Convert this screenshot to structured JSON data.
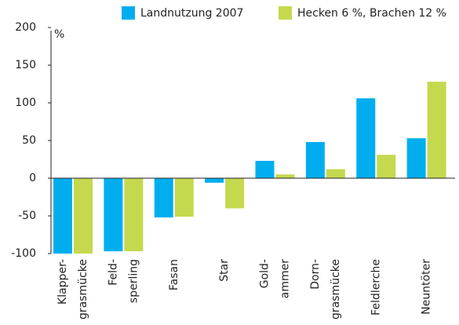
{
  "chart_data": {
    "type": "bar",
    "y_unit": "%",
    "categories": [
      [
        "Klapper-",
        "grasmücke"
      ],
      [
        "Feld-",
        "sperling"
      ],
      [
        "Fasan"
      ],
      [
        "Star"
      ],
      [
        "Gold-",
        "ammer"
      ],
      [
        "Dorn-",
        "grasmücke"
      ],
      [
        "Feldlerche"
      ],
      [
        "Neuntöter"
      ]
    ],
    "series": [
      {
        "name": "Landnutzung 2007",
        "color": "#00aeef",
        "values": [
          -100,
          -97,
          -52,
          -6,
          23,
          48,
          106,
          53
        ]
      },
      {
        "name": "Hecken 6 %, Brachen 12 %",
        "color": "#c6d84e",
        "values": [
          -100,
          -97,
          -51,
          -40,
          5,
          12,
          31,
          128
        ]
      }
    ],
    "ylim": [
      -100,
      200
    ],
    "yticks": [
      -100,
      -50,
      0,
      50,
      100,
      150,
      200
    ],
    "grid": false,
    "legend": "top-right"
  }
}
